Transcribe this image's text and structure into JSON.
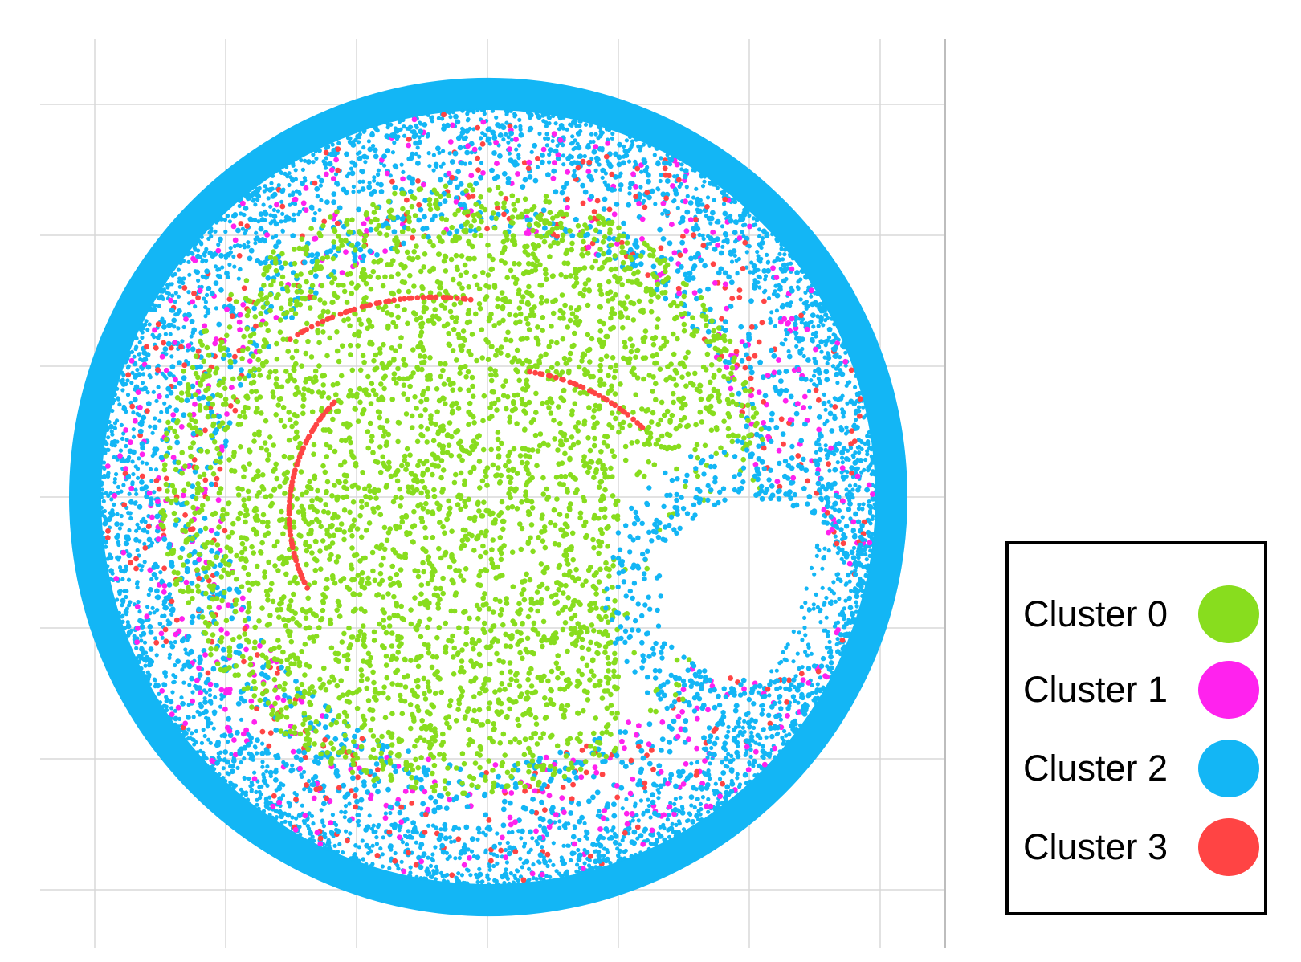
{
  "chart_data": {
    "type": "scatter",
    "title": "",
    "xlabel": "",
    "ylabel": "",
    "grid": true,
    "tick_labels": "none",
    "legend_position": "right",
    "shape": "disk of points: cluster 2 fills a dense outer ring, cluster 0 occupies the interior, clusters 1 and 3 are scattered in the mid band, with an empty hole toward the lower right",
    "series": [
      {
        "name": "Cluster 0",
        "color": "#88dd1e",
        "region": "interior"
      },
      {
        "name": "Cluster 1",
        "color": "#ff22ee",
        "region": "mid band"
      },
      {
        "name": "Cluster 2",
        "color": "#13b6f5",
        "region": "outer ring and mid band"
      },
      {
        "name": "Cluster 3",
        "color": "#ff4444",
        "region": "mid band and arcs"
      }
    ]
  }
}
